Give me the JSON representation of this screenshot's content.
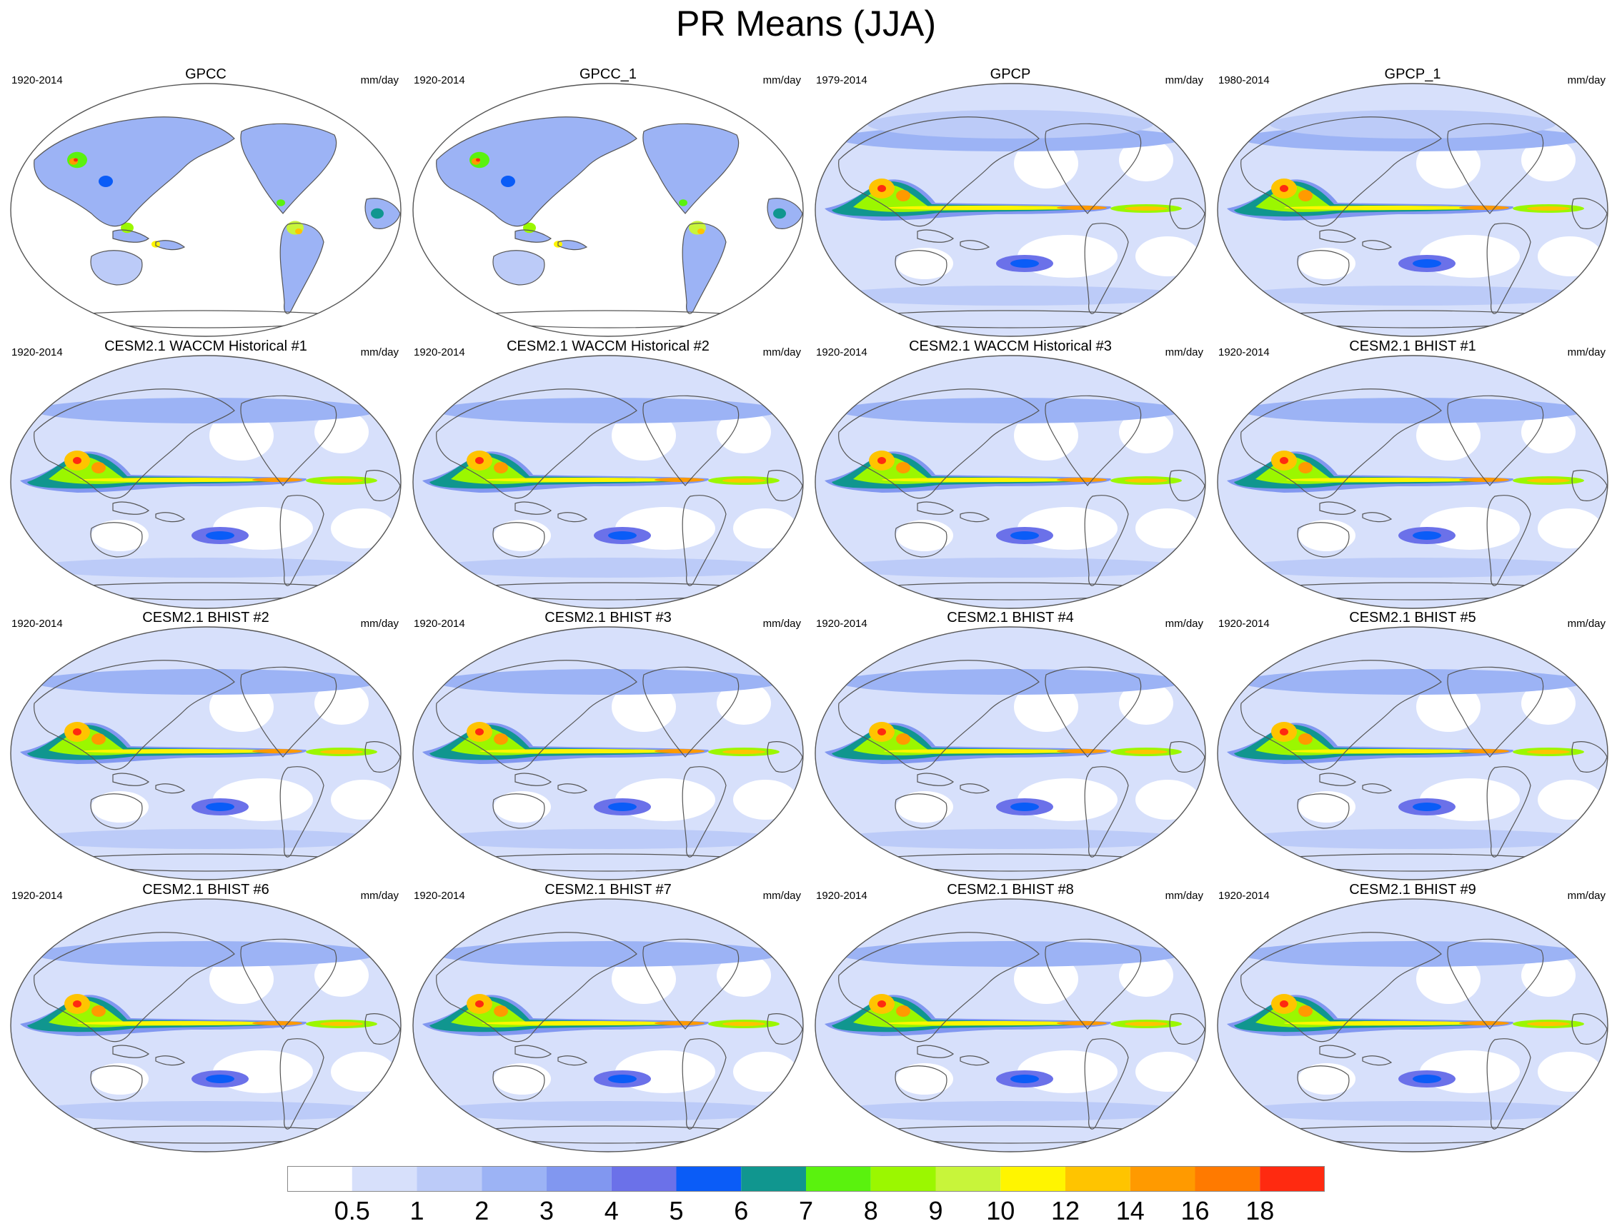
{
  "title": "PR Means (JJA)",
  "units": "mm/day",
  "panels": [
    {
      "title": "GPCC",
      "period": "1920-2014",
      "units": "mm/day",
      "kind": "land"
    },
    {
      "title": "GPCC_1",
      "period": "1920-2014",
      "units": "mm/day",
      "kind": "land"
    },
    {
      "title": "GPCP",
      "period": "1979-2014",
      "units": "mm/day",
      "kind": "obs"
    },
    {
      "title": "GPCP_1",
      "period": "1980-2014",
      "units": "mm/day",
      "kind": "obs"
    },
    {
      "title": "CESM2.1 WACCM Historical #1",
      "period": "1920-2014",
      "units": "mm/day",
      "kind": "model"
    },
    {
      "title": "CESM2.1 WACCM Historical #2",
      "period": "1920-2014",
      "units": "mm/day",
      "kind": "model"
    },
    {
      "title": "CESM2.1 WACCM Historical #3",
      "period": "1920-2014",
      "units": "mm/day",
      "kind": "model"
    },
    {
      "title": "CESM2.1 BHIST #1",
      "period": "1920-2014",
      "units": "mm/day",
      "kind": "model"
    },
    {
      "title": "CESM2.1 BHIST #2",
      "period": "1920-2014",
      "units": "mm/day",
      "kind": "model"
    },
    {
      "title": "CESM2.1 BHIST #3",
      "period": "1920-2014",
      "units": "mm/day",
      "kind": "model"
    },
    {
      "title": "CESM2.1 BHIST #4",
      "period": "1920-2014",
      "units": "mm/day",
      "kind": "model"
    },
    {
      "title": "CESM2.1 BHIST #5",
      "period": "1920-2014",
      "units": "mm/day",
      "kind": "model"
    },
    {
      "title": "CESM2.1 BHIST #6",
      "period": "1920-2014",
      "units": "mm/day",
      "kind": "model"
    },
    {
      "title": "CESM2.1 BHIST #7",
      "period": "1920-2014",
      "units": "mm/day",
      "kind": "model"
    },
    {
      "title": "CESM2.1 BHIST #8",
      "period": "1920-2014",
      "units": "mm/day",
      "kind": "model"
    },
    {
      "title": "CESM2.1 BHIST #9",
      "period": "1920-2014",
      "units": "mm/day",
      "kind": "model"
    }
  ],
  "colorbar": {
    "labels": [
      "0.5",
      "1",
      "2",
      "3",
      "4",
      "5",
      "6",
      "7",
      "8",
      "9",
      "10",
      "12",
      "14",
      "16",
      "18"
    ],
    "colors": [
      "#ffffff",
      "#d7e0fb",
      "#bccbf8",
      "#9cb3f5",
      "#8197f0",
      "#6b71e9",
      "#0a5cf7",
      "#10968f",
      "#5af20e",
      "#9bf700",
      "#c8f53a",
      "#fff500",
      "#ffc400",
      "#ff9a00",
      "#ff7a00",
      "#ff2a10"
    ]
  }
}
